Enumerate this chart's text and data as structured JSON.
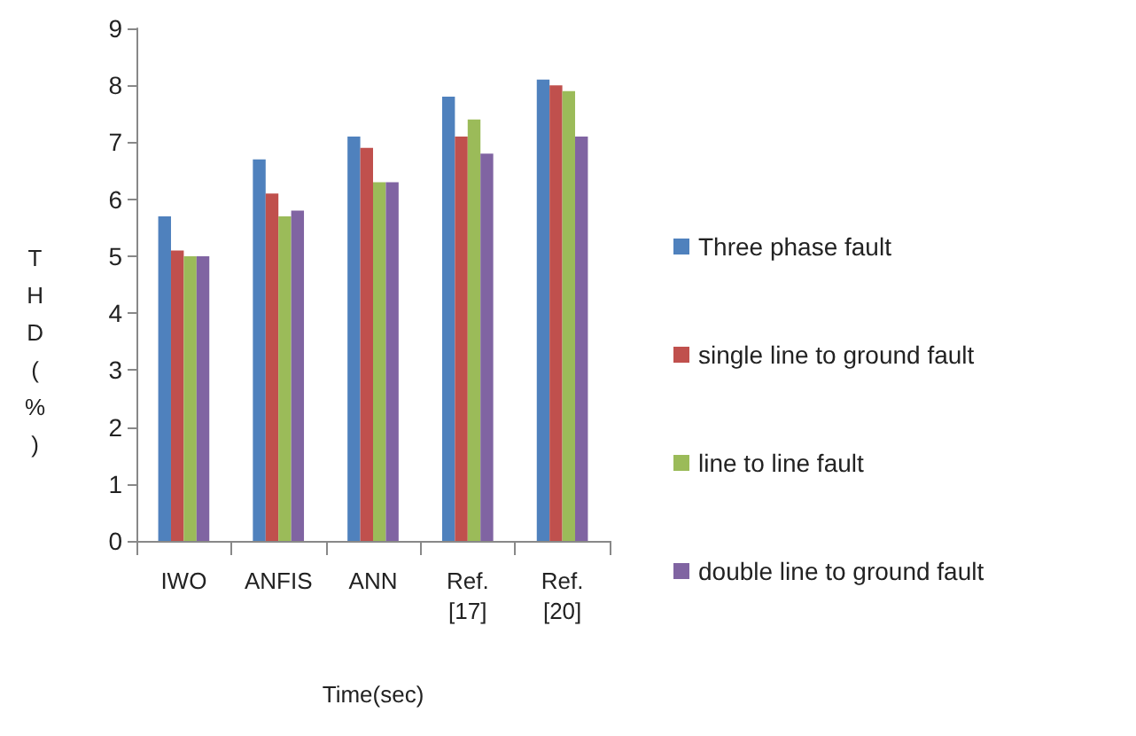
{
  "chart_data": {
    "type": "bar",
    "xlabel": "Time(sec)",
    "ylabel": "THD (%)",
    "categories": [
      "IWO",
      "ANFIS",
      "ANN",
      "Ref. [17]",
      "Ref. [20]"
    ],
    "series": [
      {
        "name": "Three phase fault",
        "color": "#4f81bd",
        "values": [
          5.7,
          6.7,
          7.1,
          7.8,
          8.1
        ]
      },
      {
        "name": "single line to ground fault",
        "color": "#c0504d",
        "values": [
          5.1,
          6.1,
          6.9,
          7.1,
          8.0
        ]
      },
      {
        "name": "line to line fault",
        "color": "#9bbb59",
        "values": [
          5.0,
          5.7,
          6.3,
          7.4,
          7.9
        ]
      },
      {
        "name": "double line to ground fault",
        "color": "#8064a2",
        "values": [
          5.0,
          5.8,
          6.3,
          6.8,
          7.1
        ]
      }
    ],
    "ylim": [
      0,
      9
    ],
    "yticks": [
      0,
      1,
      2,
      3,
      4,
      5,
      6,
      7,
      8,
      9
    ],
    "grid": false,
    "legend": "right"
  }
}
